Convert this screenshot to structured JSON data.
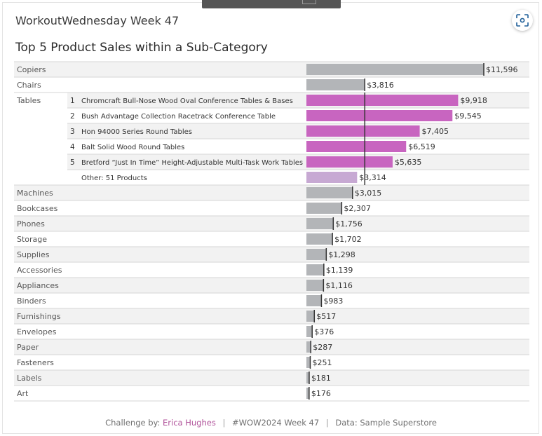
{
  "header": {
    "kicker": "WorkoutWednesday Week 47",
    "title": "Top 5 Product Sales within a Sub-Category"
  },
  "toolbar": {
    "focus_icon": "focus-frame-icon"
  },
  "footer": {
    "prefix": "Challenge by:",
    "author": "Erica Hughes",
    "tag": "#WOW2024 Week 47",
    "source": "Data: Sample Superstore"
  },
  "colors": {
    "bar_gray": "#b3b5b8",
    "bar_highlight": "#c865c0",
    "bar_other": "#c7a9d3",
    "reference_line": "#333333",
    "alt_row": "#f2f2f2"
  },
  "chart_data": {
    "type": "bar",
    "orientation": "horizontal",
    "reference_line_value": 3816,
    "xlim": [
      0,
      11596
    ],
    "rows": [
      {
        "category": "Copiers",
        "rank": "",
        "product": "",
        "value": 11596,
        "label": "$11,596",
        "kind": "subcat"
      },
      {
        "category": "Chairs",
        "rank": "",
        "product": "",
        "value": 3816,
        "label": "$3,816",
        "kind": "subcat"
      },
      {
        "category": "Tables",
        "rank": "1",
        "product": "Chromcraft Bull-Nose Wood Oval Conference Tables & Bases",
        "value": 9918,
        "label": "$9,918",
        "kind": "top"
      },
      {
        "category": "",
        "rank": "2",
        "product": "Bush Advantage Collection Racetrack Conference Table",
        "value": 9545,
        "label": "$9,545",
        "kind": "top"
      },
      {
        "category": "",
        "rank": "3",
        "product": "Hon 94000 Series Round Tables",
        "value": 7405,
        "label": "$7,405",
        "kind": "top"
      },
      {
        "category": "",
        "rank": "4",
        "product": "Balt Solid Wood Round Tables",
        "value": 6519,
        "label": "$6,519",
        "kind": "top"
      },
      {
        "category": "",
        "rank": "5",
        "product": "Bretford “Just In Time” Height-Adjustable Multi-Task Work Tables",
        "value": 5635,
        "label": "$5,635",
        "kind": "top"
      },
      {
        "category": "",
        "rank": "",
        "product": "Other: 51 Products",
        "value": 3314,
        "label": "$3,314",
        "kind": "other"
      },
      {
        "category": "Machines",
        "rank": "",
        "product": "",
        "value": 3015,
        "label": "$3,015",
        "kind": "subcat"
      },
      {
        "category": "Bookcases",
        "rank": "",
        "product": "",
        "value": 2307,
        "label": "$2,307",
        "kind": "subcat"
      },
      {
        "category": "Phones",
        "rank": "",
        "product": "",
        "value": 1756,
        "label": "$1,756",
        "kind": "subcat"
      },
      {
        "category": "Storage",
        "rank": "",
        "product": "",
        "value": 1702,
        "label": "$1,702",
        "kind": "subcat"
      },
      {
        "category": "Supplies",
        "rank": "",
        "product": "",
        "value": 1298,
        "label": "$1,298",
        "kind": "subcat"
      },
      {
        "category": "Accessories",
        "rank": "",
        "product": "",
        "value": 1139,
        "label": "$1,139",
        "kind": "subcat"
      },
      {
        "category": "Appliances",
        "rank": "",
        "product": "",
        "value": 1116,
        "label": "$1,116",
        "kind": "subcat"
      },
      {
        "category": "Binders",
        "rank": "",
        "product": "",
        "value": 983,
        "label": "$983",
        "kind": "subcat"
      },
      {
        "category": "Furnishings",
        "rank": "",
        "product": "",
        "value": 517,
        "label": "$517",
        "kind": "subcat"
      },
      {
        "category": "Envelopes",
        "rank": "",
        "product": "",
        "value": 376,
        "label": "$376",
        "kind": "subcat"
      },
      {
        "category": "Paper",
        "rank": "",
        "product": "",
        "value": 287,
        "label": "$287",
        "kind": "subcat"
      },
      {
        "category": "Fasteners",
        "rank": "",
        "product": "",
        "value": 251,
        "label": "$251",
        "kind": "subcat"
      },
      {
        "category": "Labels",
        "rank": "",
        "product": "",
        "value": 181,
        "label": "$181",
        "kind": "subcat"
      },
      {
        "category": "Art",
        "rank": "",
        "product": "",
        "value": 176,
        "label": "$176",
        "kind": "subcat"
      }
    ]
  }
}
